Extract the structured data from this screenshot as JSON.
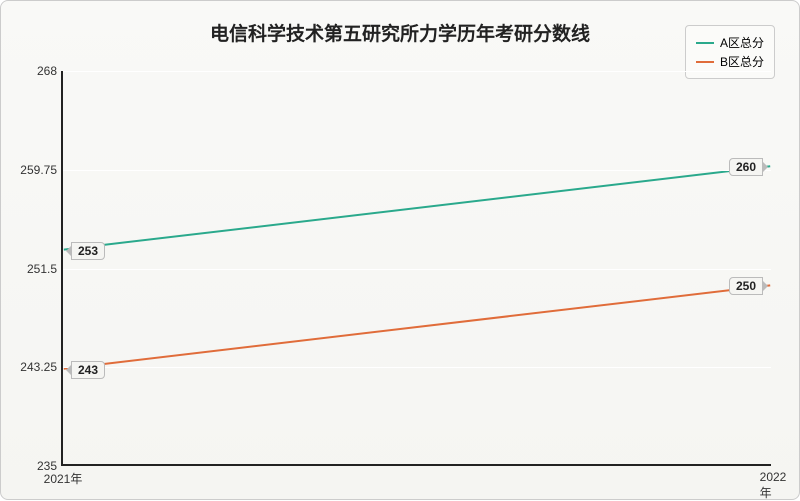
{
  "chart": {
    "type": "line",
    "title": "电信科学技术第五研究所力学历年考研分数线",
    "title_fontsize": 19,
    "title_fontweight": "bold",
    "background_gradient": [
      "#f9f9f7",
      "#f5f5f2"
    ],
    "border_color": "#cccccc",
    "axis_color": "#222222",
    "gridline_color": "#ffffff",
    "text_color": "#333333",
    "label_fontsize": 12,
    "xlim": [
      "2021年",
      "2022年"
    ],
    "ylim": [
      235,
      268
    ],
    "yticks": [
      235,
      243.25,
      251.5,
      259.75,
      268
    ],
    "xticks": [
      "2021年",
      "2022年"
    ],
    "legend": {
      "position": "top-right",
      "items": [
        {
          "label": "A区总分",
          "color": "#2aa98c"
        },
        {
          "label": "B区总分",
          "color": "#e06c3a"
        }
      ]
    },
    "series": [
      {
        "name": "A区总分",
        "color": "#2aa98c",
        "line_width": 2,
        "x": [
          "2021年",
          "2022年"
        ],
        "y": [
          253,
          260
        ],
        "labels": [
          "253",
          "260"
        ]
      },
      {
        "name": "B区总分",
        "color": "#e06c3a",
        "line_width": 2,
        "x": [
          "2021年",
          "2022年"
        ],
        "y": [
          243,
          250
        ],
        "labels": [
          "243",
          "250"
        ]
      }
    ]
  }
}
